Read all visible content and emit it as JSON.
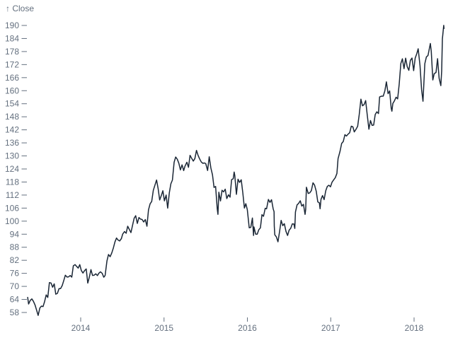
{
  "colors": {
    "background": "#ffffff",
    "line": "#1a2635",
    "axis_text": "#64707f"
  },
  "chart_data": {
    "type": "line",
    "title": "",
    "y_axis_label": "↑ Close",
    "series_name": "Close",
    "xlabel": "",
    "ylabel": "Close",
    "grid": false,
    "legend": "none",
    "x_domain": [
      2013.36,
      2018.36
    ],
    "y_domain": [
      58,
      190
    ],
    "x_ticks": [
      "2014",
      "2015",
      "2016",
      "2017",
      "2018"
    ],
    "y_ticks": [
      58,
      64,
      70,
      76,
      82,
      88,
      94,
      100,
      106,
      112,
      118,
      124,
      130,
      136,
      142,
      148,
      154,
      160,
      166,
      172,
      178,
      184,
      190
    ],
    "points": [
      [
        2013.364,
        64.96
      ],
      [
        2013.375,
        61.89
      ],
      [
        2013.395,
        63.59
      ],
      [
        2013.414,
        64.25
      ],
      [
        2013.433,
        63.12
      ],
      [
        2013.452,
        61.46
      ],
      [
        2013.471,
        59.07
      ],
      [
        2013.49,
        56.65
      ],
      [
        2013.51,
        60.03
      ],
      [
        2013.529,
        60.93
      ],
      [
        2013.548,
        60.71
      ],
      [
        2013.567,
        62.99
      ],
      [
        2013.586,
        66.08
      ],
      [
        2013.605,
        64.92
      ],
      [
        2013.625,
        71.76
      ],
      [
        2013.644,
        71.57
      ],
      [
        2013.663,
        69.6
      ],
      [
        2013.682,
        71.17
      ],
      [
        2013.701,
        66.41
      ],
      [
        2013.721,
        66.77
      ],
      [
        2013.74,
        68.96
      ],
      [
        2013.759,
        69.0
      ],
      [
        2013.778,
        70.4
      ],
      [
        2013.797,
        72.7
      ],
      [
        2013.816,
        75.14
      ],
      [
        2013.836,
        74.29
      ],
      [
        2013.855,
        74.37
      ],
      [
        2013.874,
        74.99
      ],
      [
        2013.893,
        74.26
      ],
      [
        2013.912,
        79.44
      ],
      [
        2013.932,
        80.0
      ],
      [
        2013.951,
        79.2
      ],
      [
        2013.97,
        78.43
      ],
      [
        2013.989,
        80.01
      ],
      [
        2014.008,
        77.28
      ],
      [
        2014.027,
        76.13
      ],
      [
        2014.047,
        77.24
      ],
      [
        2014.066,
        78.01
      ],
      [
        2014.085,
        71.51
      ],
      [
        2014.104,
        74.24
      ],
      [
        2014.123,
        77.71
      ],
      [
        2014.142,
        75.04
      ],
      [
        2014.162,
        75.18
      ],
      [
        2014.181,
        75.78
      ],
      [
        2014.2,
        74.96
      ],
      [
        2014.219,
        76.12
      ],
      [
        2014.238,
        76.7
      ],
      [
        2014.258,
        75.97
      ],
      [
        2014.277,
        74.23
      ],
      [
        2014.293,
        74.99
      ],
      [
        2014.315,
        81.71
      ],
      [
        2014.334,
        84.65
      ],
      [
        2014.353,
        83.65
      ],
      [
        2014.373,
        85.36
      ],
      [
        2014.392,
        87.73
      ],
      [
        2014.411,
        90.43
      ],
      [
        2014.43,
        92.22
      ],
      [
        2014.449,
        91.28
      ],
      [
        2014.468,
        90.91
      ],
      [
        2014.488,
        91.98
      ],
      [
        2014.504,
        94.03
      ],
      [
        2014.526,
        95.22
      ],
      [
        2014.545,
        94.43
      ],
      [
        2014.564,
        97.67
      ],
      [
        2014.584,
        96.13
      ],
      [
        2014.603,
        94.74
      ],
      [
        2014.622,
        97.98
      ],
      [
        2014.641,
        101.32
      ],
      [
        2014.66,
        102.5
      ],
      [
        2014.679,
        98.97
      ],
      [
        2014.699,
        101.66
      ],
      [
        2014.718,
        100.96
      ],
      [
        2014.737,
        100.75
      ],
      [
        2014.756,
        99.62
      ],
      [
        2014.775,
        100.73
      ],
      [
        2014.795,
        97.67
      ],
      [
        2014.814,
        105.22
      ],
      [
        2014.833,
        108.0
      ],
      [
        2014.852,
        109.01
      ],
      [
        2014.871,
        114.18
      ],
      [
        2014.89,
        116.47
      ],
      [
        2014.91,
        118.93
      ],
      [
        2014.929,
        115.0
      ],
      [
        2014.948,
        109.73
      ],
      [
        2014.967,
        111.78
      ],
      [
        2014.986,
        113.99
      ],
      [
        2015.005,
        109.33
      ],
      [
        2015.025,
        112.01
      ],
      [
        2015.044,
        105.99
      ],
      [
        2015.063,
        112.98
      ],
      [
        2015.082,
        117.16
      ],
      [
        2015.101,
        118.93
      ],
      [
        2015.121,
        127.08
      ],
      [
        2015.14,
        129.5
      ],
      [
        2015.159,
        128.46
      ],
      [
        2015.178,
        126.6
      ],
      [
        2015.197,
        123.59
      ],
      [
        2015.216,
        125.9
      ],
      [
        2015.236,
        123.25
      ],
      [
        2015.252,
        125.32
      ],
      [
        2015.274,
        127.1
      ],
      [
        2015.293,
        124.75
      ],
      [
        2015.312,
        130.28
      ],
      [
        2015.331,
        128.95
      ],
      [
        2015.351,
        127.62
      ],
      [
        2015.37,
        128.77
      ],
      [
        2015.389,
        132.54
      ],
      [
        2015.408,
        130.28
      ],
      [
        2015.427,
        128.65
      ],
      [
        2015.447,
        127.17
      ],
      [
        2015.466,
        126.6
      ],
      [
        2015.485,
        126.75
      ],
      [
        2015.501,
        126.44
      ],
      [
        2015.523,
        123.28
      ],
      [
        2015.542,
        129.62
      ],
      [
        2015.562,
        124.5
      ],
      [
        2015.581,
        121.3
      ],
      [
        2015.6,
        115.52
      ],
      [
        2015.619,
        115.96
      ],
      [
        2015.638,
        105.76
      ],
      [
        2015.647,
        103.12
      ],
      [
        2015.658,
        113.29
      ],
      [
        2015.677,
        109.27
      ],
      [
        2015.696,
        114.21
      ],
      [
        2015.715,
        113.45
      ],
      [
        2015.734,
        114.71
      ],
      [
        2015.753,
        110.38
      ],
      [
        2015.773,
        112.12
      ],
      [
        2015.792,
        111.04
      ],
      [
        2015.811,
        119.08
      ],
      [
        2015.83,
        119.5
      ],
      [
        2015.841,
        122.57
      ],
      [
        2015.849,
        121.06
      ],
      [
        2015.868,
        112.34
      ],
      [
        2015.888,
        119.3
      ],
      [
        2015.907,
        117.81
      ],
      [
        2015.926,
        119.03
      ],
      [
        2015.945,
        113.18
      ],
      [
        2015.964,
        106.03
      ],
      [
        2015.981,
        108.03
      ],
      [
        2015.999,
        105.26
      ],
      [
        2016.022,
        96.96
      ],
      [
        2016.041,
        97.13
      ],
      [
        2016.06,
        101.42
      ],
      [
        2016.074,
        93.42
      ],
      [
        2016.079,
        97.34
      ],
      [
        2016.099,
        94.02
      ],
      [
        2016.118,
        93.99
      ],
      [
        2016.137,
        96.04
      ],
      [
        2016.156,
        96.91
      ],
      [
        2016.175,
        103.01
      ],
      [
        2016.194,
        102.26
      ],
      [
        2016.214,
        105.92
      ],
      [
        2016.23,
        105.67
      ],
      [
        2016.252,
        109.99
      ],
      [
        2016.271,
        108.66
      ],
      [
        2016.29,
        109.85
      ],
      [
        2016.309,
        105.68
      ],
      [
        2016.32,
        104.35
      ],
      [
        2016.323,
        97.82
      ],
      [
        2016.329,
        93.74
      ],
      [
        2016.348,
        92.72
      ],
      [
        2016.367,
        90.52
      ],
      [
        2016.386,
        95.22
      ],
      [
        2016.405,
        100.35
      ],
      [
        2016.424,
        97.92
      ],
      [
        2016.443,
        98.83
      ],
      [
        2016.463,
        95.33
      ],
      [
        2016.482,
        93.4
      ],
      [
        2016.501,
        95.89
      ],
      [
        2016.52,
        96.68
      ],
      [
        2016.539,
        98.78
      ],
      [
        2016.558,
        98.66
      ],
      [
        2016.569,
        96.67
      ],
      [
        2016.577,
        104.21
      ],
      [
        2016.596,
        107.48
      ],
      [
        2016.615,
        108.18
      ],
      [
        2016.634,
        109.36
      ],
      [
        2016.653,
        106.94
      ],
      [
        2016.673,
        107.73
      ],
      [
        2016.692,
        103.13
      ],
      [
        2016.7,
        105.44
      ],
      [
        2016.708,
        115.57
      ],
      [
        2016.73,
        112.71
      ],
      [
        2016.749,
        113.05
      ],
      [
        2016.768,
        114.06
      ],
      [
        2016.787,
        117.63
      ],
      [
        2016.806,
        116.6
      ],
      [
        2016.826,
        113.72
      ],
      [
        2016.845,
        108.84
      ],
      [
        2016.864,
        108.43
      ],
      [
        2016.872,
        105.71
      ],
      [
        2016.883,
        110.06
      ],
      [
        2016.902,
        111.79
      ],
      [
        2016.921,
        109.9
      ],
      [
        2016.94,
        113.95
      ],
      [
        2016.959,
        115.97
      ],
      [
        2016.978,
        116.52
      ],
      [
        2016.997,
        115.82
      ],
      [
        2017.016,
        117.91
      ],
      [
        2017.036,
        119.04
      ],
      [
        2017.055,
        120.0
      ],
      [
        2017.074,
        121.95
      ],
      [
        2017.088,
        128.75
      ],
      [
        2017.112,
        132.12
      ],
      [
        2017.131,
        135.72
      ],
      [
        2017.151,
        136.66
      ],
      [
        2017.17,
        139.78
      ],
      [
        2017.189,
        139.14
      ],
      [
        2017.208,
        139.99
      ],
      [
        2017.227,
        140.64
      ],
      [
        2017.247,
        143.66
      ],
      [
        2017.266,
        143.34
      ],
      [
        2017.282,
        141.05
      ],
      [
        2017.304,
        142.27
      ],
      [
        2017.323,
        143.65
      ],
      [
        2017.342,
        148.96
      ],
      [
        2017.362,
        156.1
      ],
      [
        2017.381,
        153.06
      ],
      [
        2017.4,
        153.61
      ],
      [
        2017.419,
        155.45
      ],
      [
        2017.438,
        148.98
      ],
      [
        2017.458,
        142.27
      ],
      [
        2017.477,
        146.28
      ],
      [
        2017.496,
        144.02
      ],
      [
        2017.515,
        144.18
      ],
      [
        2017.534,
        149.04
      ],
      [
        2017.553,
        150.27
      ],
      [
        2017.573,
        149.5
      ],
      [
        2017.586,
        157.14
      ],
      [
        2017.611,
        157.48
      ],
      [
        2017.63,
        157.5
      ],
      [
        2017.649,
        159.86
      ],
      [
        2017.668,
        164.05
      ],
      [
        2017.688,
        158.63
      ],
      [
        2017.707,
        159.88
      ],
      [
        2017.726,
        151.89
      ],
      [
        2017.734,
        150.55
      ],
      [
        2017.745,
        154.12
      ],
      [
        2017.764,
        155.3
      ],
      [
        2017.784,
        156.99
      ],
      [
        2017.803,
        156.25
      ],
      [
        2017.822,
        163.05
      ],
      [
        2017.841,
        172.5
      ],
      [
        2017.86,
        174.67
      ],
      [
        2017.879,
        170.15
      ],
      [
        2017.899,
        174.97
      ],
      [
        2017.918,
        171.05
      ],
      [
        2017.937,
        169.37
      ],
      [
        2017.956,
        173.97
      ],
      [
        2017.975,
        175.01
      ],
      [
        2017.995,
        169.23
      ],
      [
        2018.014,
        175.0
      ],
      [
        2018.033,
        177.09
      ],
      [
        2018.049,
        179.26
      ],
      [
        2018.071,
        171.51
      ],
      [
        2018.09,
        160.5
      ],
      [
        2018.107,
        155.15
      ],
      [
        2018.129,
        172.43
      ],
      [
        2018.148,
        175.5
      ],
      [
        2018.167,
        176.21
      ],
      [
        2018.195,
        181.72
      ],
      [
        2018.206,
        178.02
      ],
      [
        2018.225,
        164.94
      ],
      [
        2018.241,
        167.78
      ],
      [
        2018.263,
        168.38
      ],
      [
        2018.282,
        174.73
      ],
      [
        2018.301,
        165.72
      ],
      [
        2018.321,
        162.32
      ],
      [
        2018.331,
        169.1
      ],
      [
        2018.34,
        183.83
      ],
      [
        2018.356,
        190.04
      ],
      [
        2018.359,
        188.59
      ]
    ]
  }
}
